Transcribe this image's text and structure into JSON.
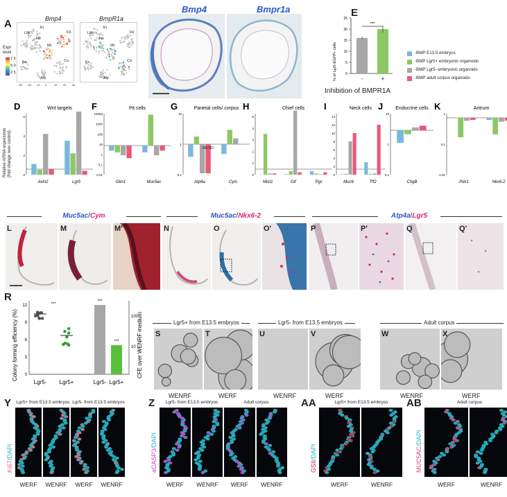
{
  "panels": {
    "A": {
      "letter": "A",
      "title_left": "Bmp4",
      "title_right": "BmpR1a",
      "clusters_left": [
        "Er",
        "LM",
        "Ne",
        "Mt",
        "Fb",
        "Co",
        "Fs",
        "An"
      ],
      "clusters_right": [
        "Er",
        "LM",
        "Ne",
        "Mt",
        "Fb",
        "Co",
        "Fs",
        "An"
      ],
      "legend_title": "Expr\nlevel",
      "legend_ticks": [
        "7.5",
        "5.0",
        "2.5"
      ],
      "x_ticks": [
        "-30",
        "-20",
        "-10",
        "0",
        "10",
        "20",
        "30"
      ]
    },
    "B": {
      "letter": "B",
      "title": "Bmp4"
    },
    "C": {
      "letter": "C",
      "title": "Bmpr1a"
    },
    "E": {
      "letter": "E",
      "ylabel": "% of Lgr5-EGFP+ cells",
      "xlabel": "Inhibition of BMPR1A",
      "categories": [
        "-",
        "+"
      ],
      "y_ticks": [
        "0",
        "5",
        "10",
        "15",
        "20",
        "25"
      ],
      "sig": "***"
    },
    "legend": [
      "-BMP E13.5 embryos",
      "-BMP Lgr5+ embryonic organoids",
      "-BMP Lgr5- embryonic organoids",
      "-BMP adult corpus organoids"
    ],
    "D": {
      "letter": "D",
      "title": "Wnt targets",
      "ylabel": "Relative mRNA expression\n(fold change over control)",
      "genes": [
        "Axin2",
        "Lgr5"
      ]
    },
    "F": {
      "letter": "F",
      "title": "Pit cells",
      "genes": [
        "Gkn1",
        "Muc5ac"
      ]
    },
    "G": {
      "letter": "G",
      "title": "Parietal cells/ corpus",
      "genes": [
        "Atp4a",
        "Cym"
      ],
      "nd": "ND ND"
    },
    "H": {
      "letter": "H",
      "title": "Chief cells",
      "genes": [
        "Mist1",
        "Gif",
        "Pgc"
      ]
    },
    "I": {
      "letter": "I",
      "title": "Neck cells",
      "genes": [
        "Muc6",
        "Tff2"
      ]
    },
    "J": {
      "letter": "J",
      "title": "Endocrine cells",
      "genes": [
        "ChgB"
      ]
    },
    "K": {
      "letter": "K",
      "title": "Antrum",
      "genes": [
        "Pdx1",
        "Nkx6-2"
      ]
    },
    "row3_headers": [
      {
        "a": "Muc5ac",
        "sep": "/",
        "b": "Cym"
      },
      {
        "a": "Muc5ac",
        "sep": "/",
        "b": "Nkx6-2"
      },
      {
        "a": "Atp4a",
        "sep": "/",
        "b": "Lgr5"
      }
    ],
    "row3": [
      "L",
      "M",
      "M'",
      "N",
      "O",
      "O'",
      "P",
      "P'",
      "Q",
      "Q'"
    ],
    "minus_bmp": "-BMP",
    "R": {
      "letter": "R",
      "ylabel_left": "Colony forming efficiency (%)",
      "ylabel_right": "CFE over WENRF medium",
      "left_ticks": [
        "0",
        "3",
        "6",
        "9",
        "12"
      ],
      "right_ticks": [
        "100",
        "10"
      ],
      "categories": [
        "Lgr5-",
        "Lgr5+",
        "Lgr5-",
        "Lgr5+"
      ],
      "sig": "***"
    },
    "S_X_headers": [
      "Lgr5+ from E13.5 embryos",
      "Lgr5- from E13.5 embryos",
      "Adult corpus"
    ],
    "S_X": [
      {
        "letter": "S",
        "medium": "WENRF"
      },
      {
        "letter": "T",
        "medium": "WERF"
      },
      {
        "letter": "U",
        "medium": "WENRF"
      },
      {
        "letter": "V",
        "medium": "WERF"
      },
      {
        "letter": "W",
        "medium": "WENRF"
      },
      {
        "letter": "X",
        "medium": "WERF"
      }
    ],
    "Y": {
      "letter": "Y",
      "stain": "Ki67",
      "dapi": "/DAPI",
      "headers": [
        "Lgr5+ from E13.5 embryos",
        "Lgr5- from E13.5 embryos"
      ],
      "media": [
        "WERF",
        "WENRF",
        "WERF",
        "WENRF"
      ]
    },
    "Z": {
      "letter": "Z",
      "stain": "aCASP3",
      "dapi": "/DAPI",
      "headers": [
        "Lgr5- from E13.5 embryos",
        "Adult corpus"
      ],
      "media": [
        "WERF",
        "WENRF",
        "WERF",
        "WENRF"
      ]
    },
    "AA": {
      "letter": "AA",
      "stain": "GSII",
      "dapi": "/DAPI",
      "headers": [
        "Lgr5+ from E13.5 embryos"
      ],
      "media": [
        "WERF",
        "WENRF"
      ]
    },
    "AB": {
      "letter": "AB",
      "stain": "MUC5AC",
      "dapi": "/DAPI",
      "headers": [
        "Adult corpus"
      ],
      "media": [
        "WERF",
        "WENRF"
      ]
    }
  },
  "colors": {
    "blue": "#7ab8dc",
    "green": "#8cc864",
    "gray": "#a7a7a7",
    "pink": "#e8597a",
    "title_blue": "#2b57c9",
    "title_pink": "#d9257a"
  },
  "chart_data": [
    {
      "type": "bar",
      "title": "",
      "categories": [
        "-",
        "+"
      ],
      "values": [
        16,
        20
      ],
      "ylabel": "% of Lgr5-EGFP+ cells",
      "xlabel": "Inhibition of BMPR1A",
      "ylim": [
        0,
        25
      ]
    },
    {
      "type": "bar",
      "title": "Wnt targets",
      "categories": [
        "Axin2",
        "Lgr5"
      ],
      "series": [
        {
          "name": "-BMP E13.5 embryos",
          "values": [
            1.2,
            2.5
          ]
        },
        {
          "name": "-BMP Lgr5+ embryonic organoids",
          "values": [
            0.5,
            1.5
          ]
        },
        {
          "name": "-BMP Lgr5- embryonic organoids",
          "values": [
            4.2,
            6.5
          ]
        },
        {
          "name": "-BMP adult corpus organoids",
          "values": [
            0.8,
            0.5
          ]
        }
      ]
    }
  ]
}
